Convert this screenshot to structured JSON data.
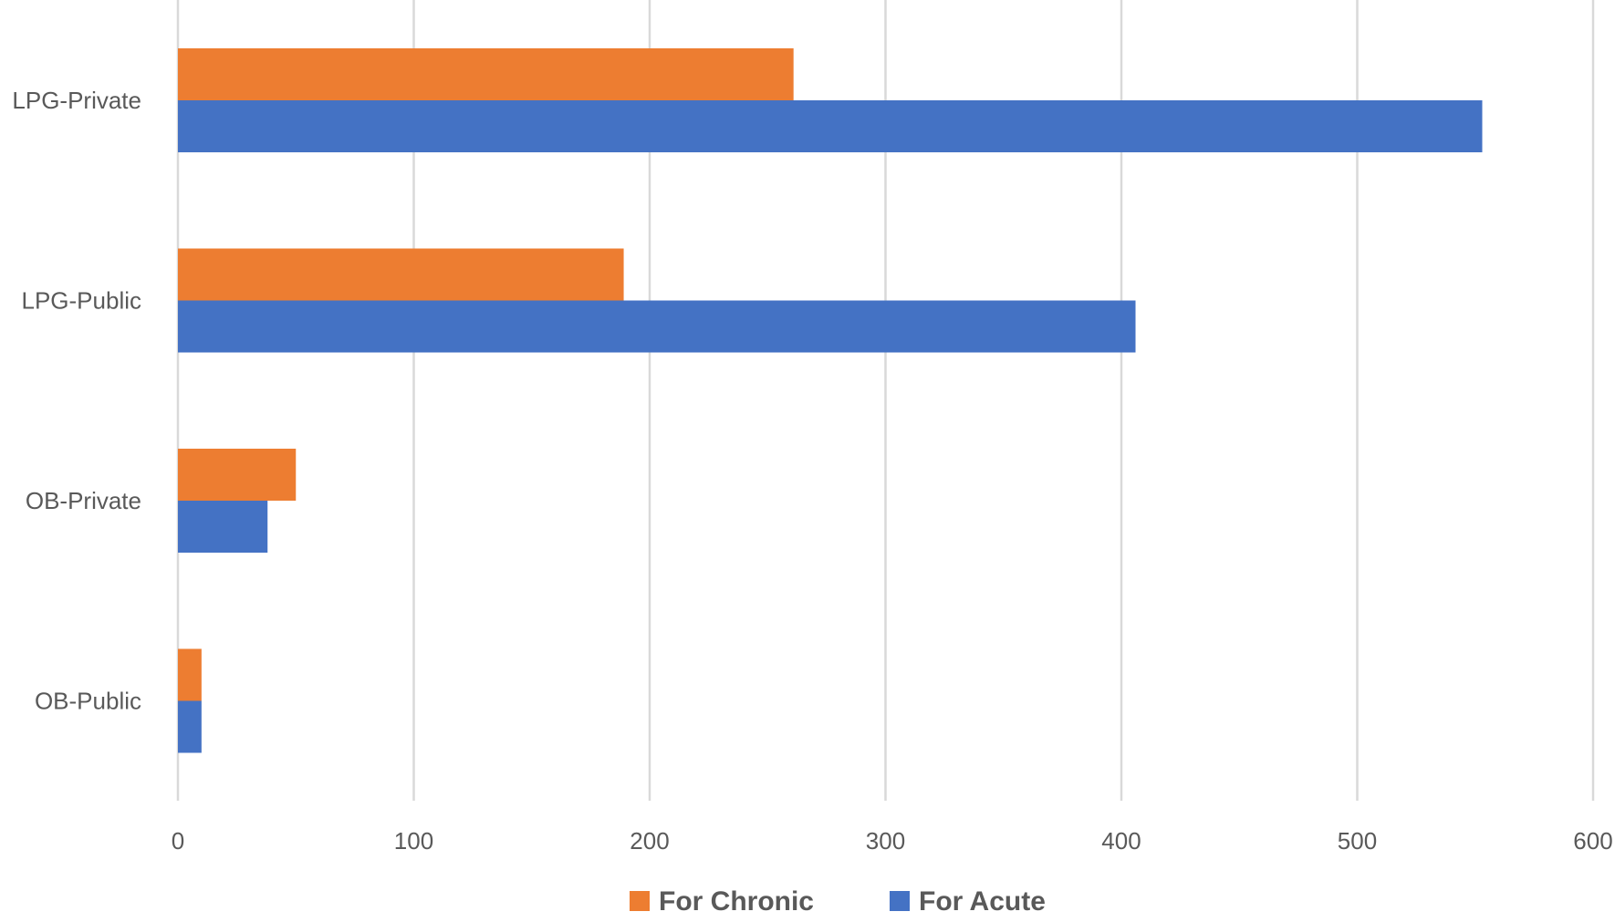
{
  "chart_data": {
    "type": "bar",
    "orientation": "horizontal",
    "title": "",
    "xlabel": "",
    "ylabel": "",
    "categories": [
      "LPG-Private",
      "LPG-Public",
      "OB-Private",
      "OB-Public"
    ],
    "series": [
      {
        "name": "For Chronic",
        "color": "#ED7D31",
        "values": [
          261,
          189,
          50,
          10
        ]
      },
      {
        "name": "For Acute",
        "color": "#4472C4",
        "values": [
          553,
          406,
          38,
          10
        ]
      }
    ],
    "xlim": [
      0,
      600
    ],
    "xticks": [
      "0",
      "100",
      "200",
      "300",
      "400",
      "500",
      "600"
    ],
    "grid": true,
    "gridline_color": "#d9d9d9",
    "legend_position": "bottom"
  }
}
